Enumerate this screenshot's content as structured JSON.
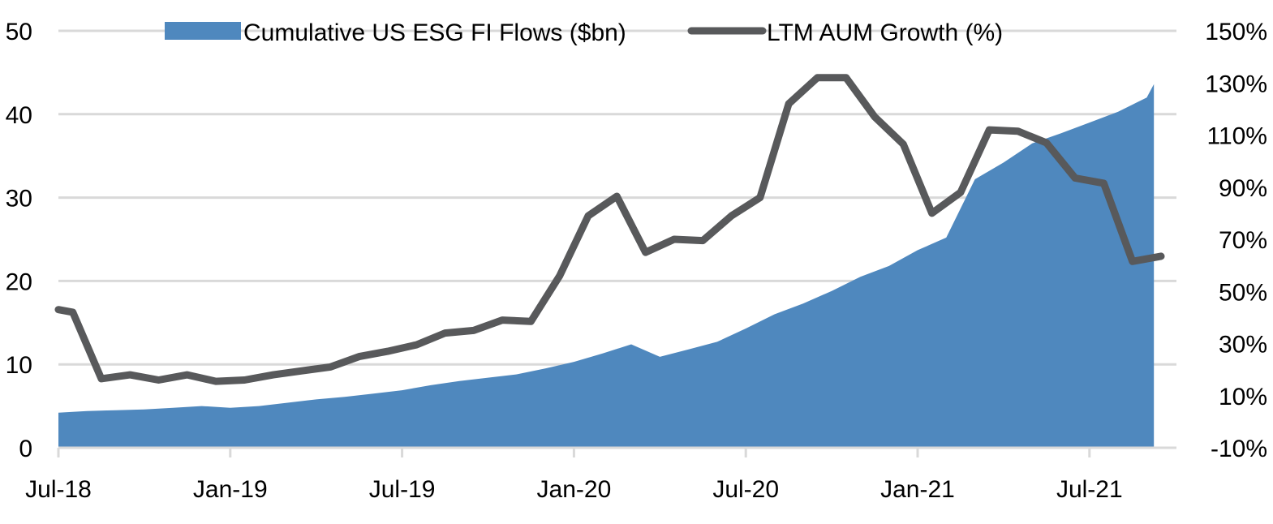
{
  "chart_data": {
    "type": "area",
    "title": "",
    "xlabel": "",
    "ylabel": "",
    "x_tick_labels": [
      "Jul-18",
      "Jan-19",
      "Jul-19",
      "Jan-20",
      "Jul-20",
      "Jan-21",
      "Jul-21"
    ],
    "x_tick_month_index": [
      0,
      6,
      12,
      18,
      24,
      30,
      36
    ],
    "y_left": {
      "ylim": [
        0,
        50
      ],
      "ticks": [
        0,
        10,
        20,
        30,
        40,
        50
      ],
      "tick_labels": [
        "0",
        "10",
        "20",
        "30",
        "40",
        "50"
      ]
    },
    "y_right": {
      "ylim": [
        -10,
        150
      ],
      "ticks": [
        -10,
        10,
        30,
        50,
        70,
        90,
        110,
        130,
        150
      ],
      "tick_labels": [
        "-10%",
        "10%",
        "30%",
        "50%",
        "70%",
        "90%",
        "110%",
        "130%",
        "150%"
      ]
    },
    "legend_position": "top",
    "grid": true,
    "series": [
      {
        "name": "Cumulative US ESG FI Flows ($bn)",
        "kind": "area",
        "axis": "left",
        "color": "#4F88BE",
        "x": [
          0,
          1,
          2,
          3,
          4,
          5,
          6,
          7,
          8,
          9,
          10,
          11,
          12,
          13,
          14,
          15,
          16,
          17,
          18,
          19,
          20,
          21,
          22,
          23,
          24,
          25,
          26,
          27,
          28,
          29,
          30,
          31,
          32,
          33,
          34,
          35,
          36,
          37,
          38,
          38.25
        ],
        "values": [
          4.2,
          4.4,
          4.5,
          4.6,
          4.8,
          5.0,
          4.8,
          5.0,
          5.4,
          5.8,
          6.1,
          6.5,
          6.9,
          7.5,
          8.0,
          8.4,
          8.8,
          9.5,
          10.3,
          11.3,
          12.4,
          10.9,
          11.8,
          12.7,
          14.3,
          16.0,
          17.3,
          18.8,
          20.5,
          21.8,
          23.7,
          25.2,
          32.2,
          34.2,
          36.5,
          37.7,
          39.0,
          40.3,
          42.0,
          43.6
        ]
      },
      {
        "name": "LTM AUM Growth (%)",
        "kind": "line",
        "axis": "right",
        "color": "#58595B",
        "x": [
          0,
          0.5,
          1.5,
          2.5,
          3.5,
          4.5,
          5.5,
          6.5,
          7.5,
          8.5,
          9.5,
          10.5,
          11.5,
          12.5,
          13.5,
          14.5,
          15.5,
          16.5,
          17.5,
          18.5,
          19.5,
          20.5,
          21.5,
          22.5,
          23.5,
          24.5,
          25.5,
          26.5,
          27.5,
          28.5,
          29.5,
          30.5,
          31.5,
          32.5,
          33.5,
          34.5,
          35.5,
          36.5,
          37.5,
          38.5
        ],
        "values": [
          43,
          42,
          16.5,
          18,
          16,
          18,
          15.5,
          16,
          18,
          19.5,
          21,
          25,
          27,
          29.5,
          34,
          35,
          39,
          38.5,
          56,
          79,
          86.5,
          65,
          70,
          69.5,
          79,
          86,
          122,
          132,
          132,
          117,
          106.5,
          80,
          88,
          112,
          111.5,
          107,
          93.5,
          91.5,
          61.5,
          63.5
        ]
      }
    ]
  }
}
